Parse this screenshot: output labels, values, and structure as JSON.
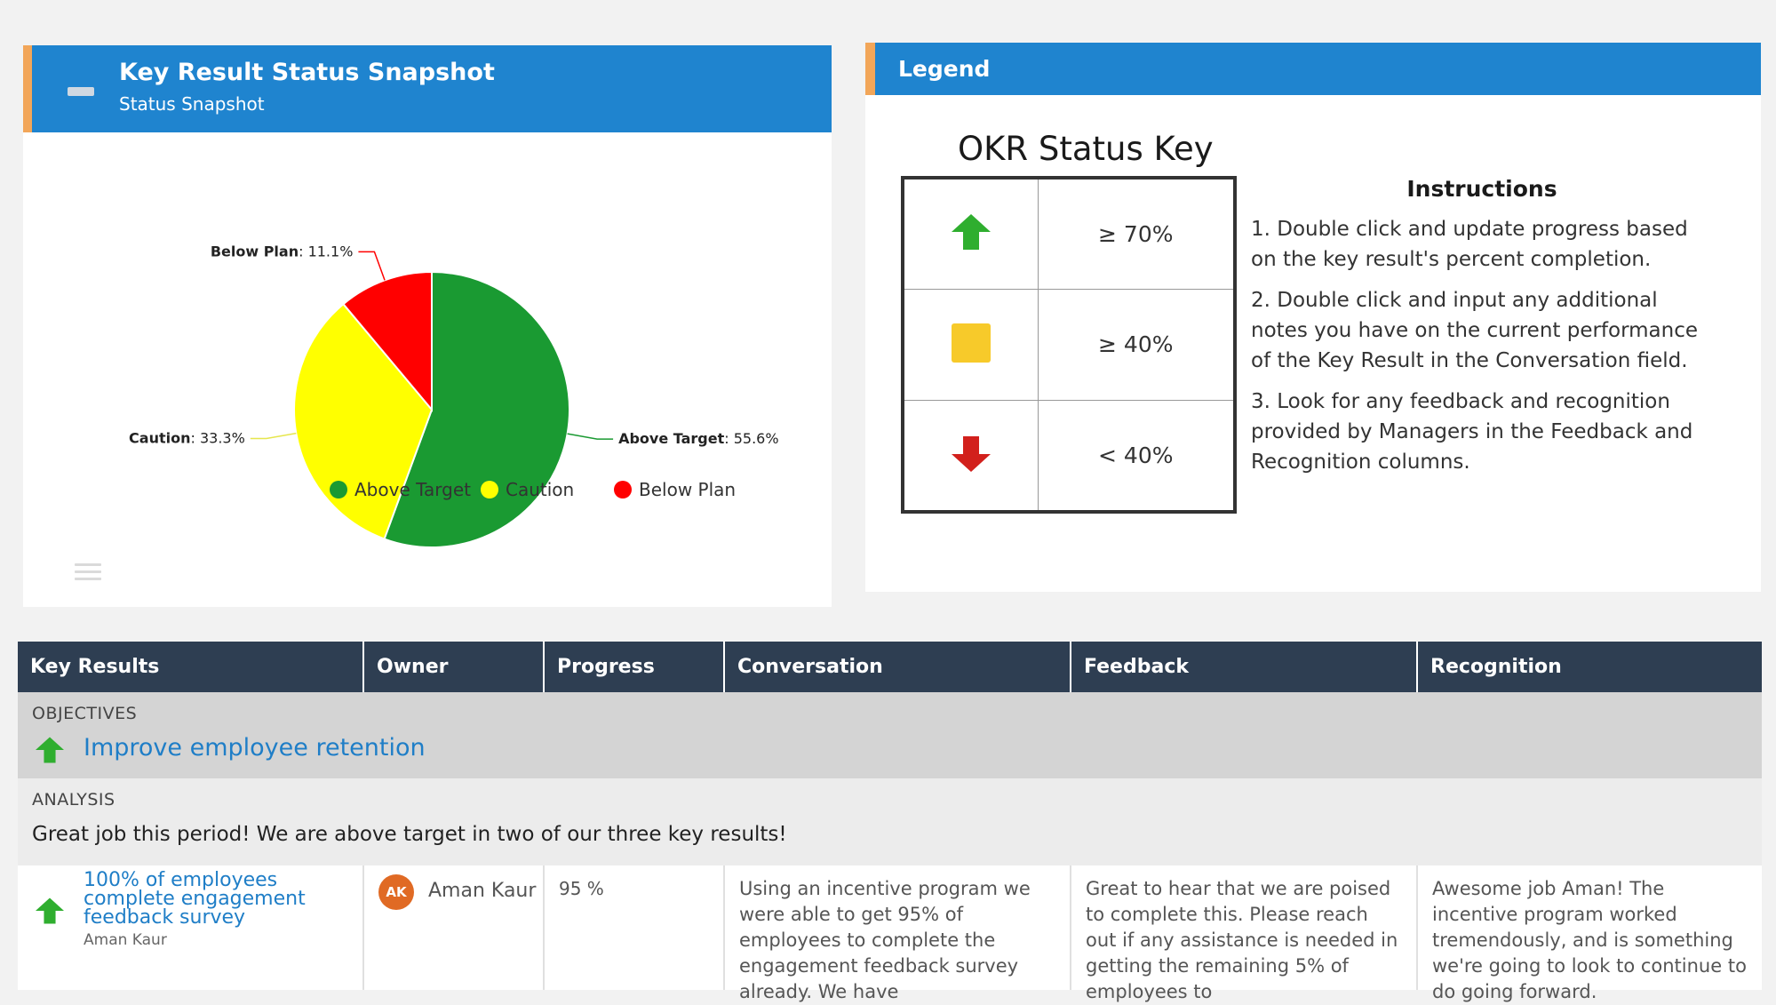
{
  "snapshot": {
    "title": "Key Result Status Snapshot",
    "subtitle": "Status Snapshot",
    "header_color": "#1f84cf",
    "accent_color": "#f2a659"
  },
  "chart_data": {
    "type": "pie",
    "slices": [
      {
        "label": "Above Target",
        "value": 55.6,
        "value_text": "55.6%",
        "color": "#1a9a32"
      },
      {
        "label": "Caution",
        "value": 33.3,
        "value_text": "33.3%",
        "color": "#ffff00"
      },
      {
        "label": "Below Plan",
        "value": 11.1,
        "value_text": "11.1%",
        "color": "#ff0000"
      }
    ],
    "legend": [
      "Above Target",
      "Caution",
      "Below Plan"
    ],
    "legend_position": "bottom"
  },
  "legend_panel": {
    "title": "Legend",
    "key_title": "OKR Status Key",
    "key_rows": [
      {
        "icon": "up-arrow-icon",
        "color": "#2fae2f",
        "label": "≥ 70%"
      },
      {
        "icon": "square-icon",
        "color": "#f7ca2a",
        "label": "≥ 40%"
      },
      {
        "icon": "down-arrow-icon",
        "color": "#d2201c",
        "label": "< 40%"
      }
    ],
    "instructions_title": "Instructions",
    "instructions": [
      "1. Double click and update progress based on the key result's percent completion.",
      "2. Double click and input any additional notes you have on the current performance of the Key Result in the Conversation field.",
      "3. Look for any feedback and recognition provided by Managers in the Feedback and Recognition columns."
    ]
  },
  "grid": {
    "columns": [
      "Key Results",
      "Owner",
      "Progress",
      "Conversation",
      "Feedback",
      "Recognition"
    ],
    "objectives_label": "OBJECTIVES",
    "objective_title": "Improve employee retention",
    "analysis_label": "ANALYSIS",
    "analysis_text": "Great job this period! We are above target in two of our three key results!",
    "rows": [
      {
        "key_result": "100% of employees complete engagement feedback survey",
        "key_result_owner": "Aman Kaur",
        "owner_initials": "AK",
        "owner_name": "Aman Kaur",
        "progress": "95 %",
        "conversation": "Using an incentive program we were able to get 95% of employees to complete the engagement feedback survey already. We have",
        "feedback": "Great to hear that we are poised to complete this. Please reach out if any assistance is needed in getting the remaining 5% of employees to",
        "recognition": "Awesome job Aman! The incentive program worked tremendously, and is something we're going to look to continue to do going forward."
      }
    ]
  }
}
